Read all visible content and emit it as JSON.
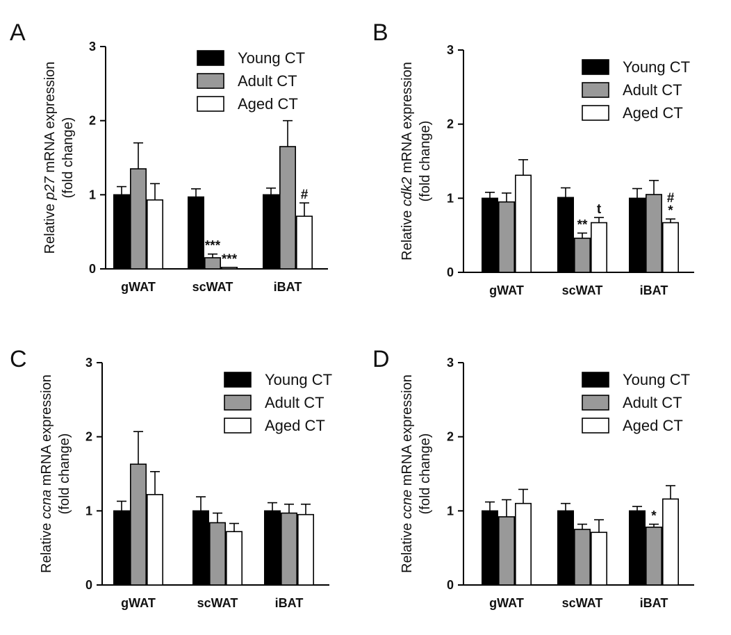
{
  "chart_data": [
    {
      "panel": "A",
      "type": "bar",
      "ylabel_prefix": "Relative ",
      "ylabel_gene": "p27",
      "ylabel_suffix": " mRNA expression",
      "ylabel_line2": "(fold change)",
      "ylim": [
        0,
        3
      ],
      "yticks": [
        "0",
        "1",
        "2",
        "3"
      ],
      "categories": [
        "gWAT",
        "scWAT",
        "iBAT"
      ],
      "legend_position": "top-right",
      "series": [
        {
          "name": "Young CT",
          "color": "#000000",
          "values": [
            1.0,
            0.97,
            1.0
          ],
          "errors": [
            0.11,
            0.11,
            0.09
          ]
        },
        {
          "name": "Adult CT",
          "color": "#999999",
          "values": [
            1.35,
            0.15,
            1.65
          ],
          "errors": [
            0.35,
            0.05,
            0.35
          ]
        },
        {
          "name": "Aged CT",
          "color": "#ffffff",
          "values": [
            0.93,
            0.02,
            0.71
          ],
          "errors": [
            0.22,
            0.0,
            0.18
          ]
        }
      ],
      "annotations": [
        {
          "category": 1,
          "series": 1,
          "text": "***"
        },
        {
          "category": 1,
          "series": 2,
          "text": "***"
        },
        {
          "category": 2,
          "series": 2,
          "text": "#"
        }
      ]
    },
    {
      "panel": "B",
      "type": "bar",
      "ylabel_prefix": "Relative ",
      "ylabel_gene": "cdk2",
      "ylabel_suffix": " mRNA expression",
      "ylabel_line2": "(fold change)",
      "ylim": [
        0,
        3
      ],
      "yticks": [
        "0",
        "1",
        "2",
        "3"
      ],
      "categories": [
        "gWAT",
        "scWAT",
        "iBAT"
      ],
      "legend_position": "top-right",
      "series": [
        {
          "name": "Young CT",
          "color": "#000000",
          "values": [
            1.0,
            1.01,
            1.0
          ],
          "errors": [
            0.08,
            0.13,
            0.13
          ]
        },
        {
          "name": "Adult CT",
          "color": "#999999",
          "values": [
            0.95,
            0.46,
            1.05
          ],
          "errors": [
            0.12,
            0.07,
            0.19
          ]
        },
        {
          "name": "Aged CT",
          "color": "#ffffff",
          "values": [
            1.31,
            0.67,
            0.67
          ],
          "errors": [
            0.21,
            0.07,
            0.05
          ]
        }
      ],
      "annotations": [
        {
          "category": 1,
          "series": 1,
          "text": "**"
        },
        {
          "category": 1,
          "series": 2,
          "text": "t"
        },
        {
          "category": 2,
          "series": 2,
          "text": "#",
          "line": 1
        },
        {
          "category": 2,
          "series": 2,
          "text": "*",
          "line": 0
        }
      ]
    },
    {
      "panel": "C",
      "type": "bar",
      "ylabel_prefix": "Relative ",
      "ylabel_gene": "ccna",
      "ylabel_suffix": " mRNA expression",
      "ylabel_line2": "(fold change)",
      "ylim": [
        0,
        3
      ],
      "yticks": [
        "0",
        "1",
        "2",
        "3"
      ],
      "categories": [
        "gWAT",
        "scWAT",
        "iBAT"
      ],
      "legend_position": "top-right",
      "series": [
        {
          "name": "Young CT",
          "color": "#000000",
          "values": [
            1.0,
            1.0,
            1.0
          ],
          "errors": [
            0.13,
            0.19,
            0.11
          ]
        },
        {
          "name": "Adult CT",
          "color": "#999999",
          "values": [
            1.63,
            0.84,
            0.97
          ],
          "errors": [
            0.44,
            0.13,
            0.12
          ]
        },
        {
          "name": "Aged CT",
          "color": "#ffffff",
          "values": [
            1.22,
            0.72,
            0.95
          ],
          "errors": [
            0.31,
            0.11,
            0.14
          ]
        }
      ],
      "annotations": []
    },
    {
      "panel": "D",
      "type": "bar",
      "ylabel_prefix": "Relative ",
      "ylabel_gene": "ccne",
      "ylabel_suffix": " mRNA expression",
      "ylabel_line2": "(fold change)",
      "ylim": [
        0,
        3
      ],
      "yticks": [
        "0",
        "1",
        "2",
        "3"
      ],
      "categories": [
        "gWAT",
        "scWAT",
        "iBAT"
      ],
      "legend_position": "top-right",
      "series": [
        {
          "name": "Young CT",
          "color": "#000000",
          "values": [
            1.0,
            1.0,
            1.0
          ],
          "errors": [
            0.12,
            0.1,
            0.06
          ]
        },
        {
          "name": "Adult CT",
          "color": "#999999",
          "values": [
            0.92,
            0.75,
            0.78
          ],
          "errors": [
            0.23,
            0.07,
            0.04
          ]
        },
        {
          "name": "Aged CT",
          "color": "#ffffff",
          "values": [
            1.1,
            0.71,
            1.16
          ],
          "errors": [
            0.19,
            0.17,
            0.18
          ]
        }
      ],
      "annotations": [
        {
          "category": 2,
          "series": 1,
          "text": "*"
        }
      ]
    }
  ]
}
